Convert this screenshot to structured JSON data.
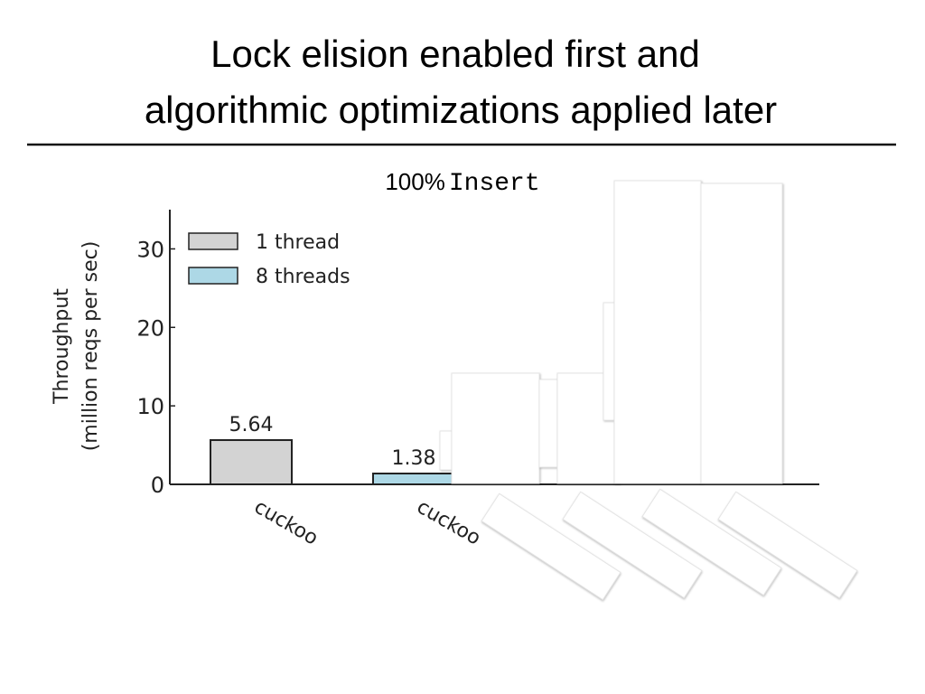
{
  "title": [
    "Lock elision enabled first and",
    "algorithmic optimizations applied later"
  ],
  "chart_data": {
    "type": "bar",
    "subtitle": [
      "100%",
      "Insert"
    ],
    "ylabel": [
      "Throughput",
      "(million reqs per sec)"
    ],
    "categories": [
      "cuckoo",
      "cuckoo"
    ],
    "series": [
      {
        "name": "1 thread",
        "color": "#d3d3d3",
        "values": [
          5.64,
          null
        ]
      },
      {
        "name": "8 threads",
        "color": "#add8e6",
        "values": [
          null,
          1.38
        ]
      }
    ],
    "ylim": [
      0,
      35
    ],
    "yticks": [
      0,
      10,
      20,
      30
    ],
    "legend": "upper left"
  }
}
